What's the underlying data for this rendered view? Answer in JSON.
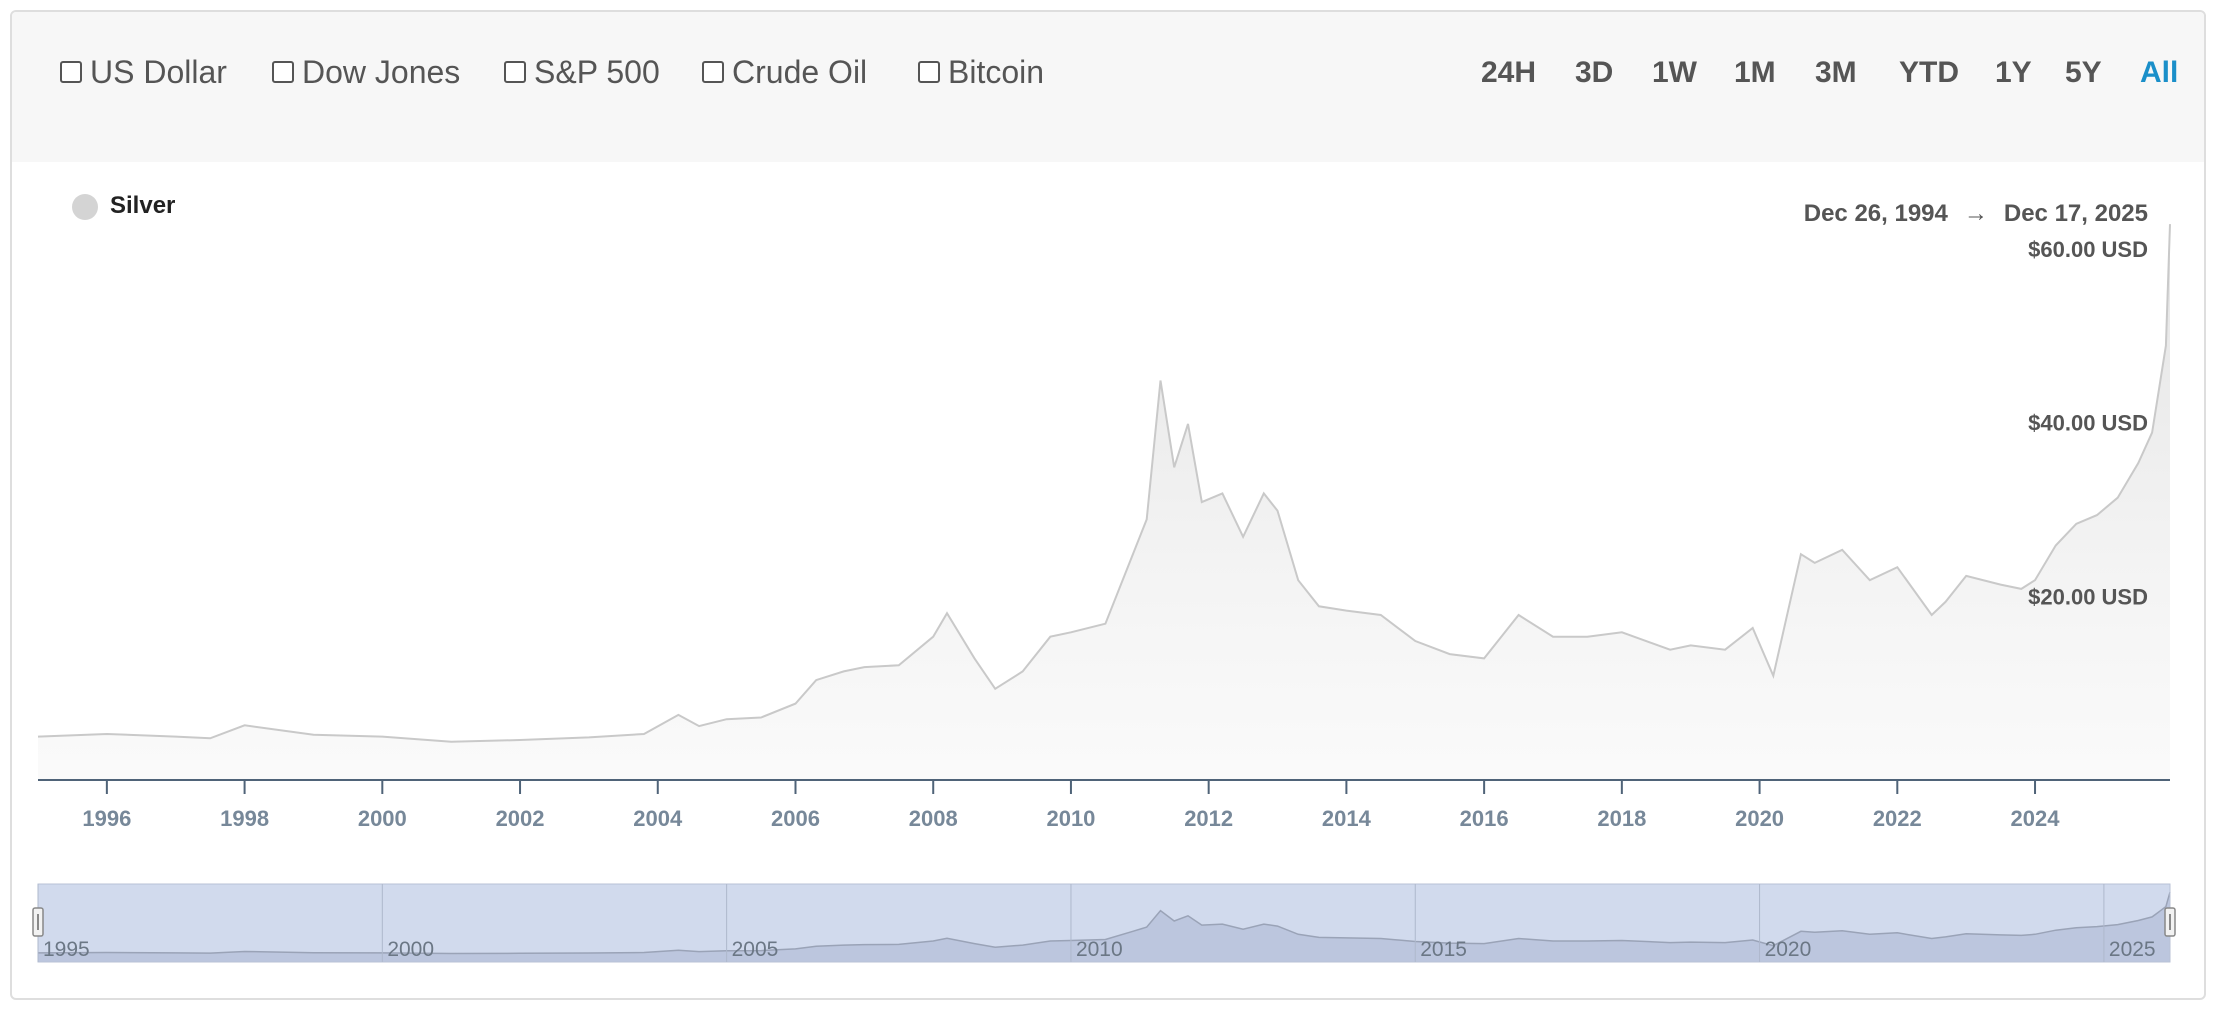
{
  "compare": [
    {
      "label": "US Dollar"
    },
    {
      "label": "Dow Jones"
    },
    {
      "label": "S&P 500"
    },
    {
      "label": "Crude Oil"
    },
    {
      "label": "Bitcoin"
    }
  ],
  "ranges": [
    "24H",
    "3D",
    "1W",
    "1M",
    "3M",
    "YTD",
    "1Y",
    "5Y",
    "All"
  ],
  "active_range": "All",
  "legend": {
    "name": "Silver"
  },
  "date_range": {
    "start": "Dec 26, 1994",
    "arrow": "→",
    "end": "Dec 17, 2025"
  },
  "colors": {
    "accent": "#1a8fc9",
    "series": "#c9c9c9",
    "navigator": "#ccd6eb",
    "axis": "#4f6378"
  },
  "chart_data": {
    "type": "area",
    "series": [
      {
        "name": "Silver",
        "x": [
          1995.0,
          1996.0,
          1997.0,
          1997.5,
          1998.0,
          1999.0,
          2000.0,
          2001.0,
          2002.0,
          2003.0,
          2003.8,
          2004.3,
          2004.6,
          2005.0,
          2005.5,
          2006.0,
          2006.3,
          2006.7,
          2007.0,
          2007.5,
          2008.0,
          2008.2,
          2008.6,
          2008.9,
          2009.3,
          2009.7,
          2010.0,
          2010.5,
          2010.9,
          2011.1,
          2011.3,
          2011.5,
          2011.7,
          2011.9,
          2012.2,
          2012.5,
          2012.8,
          2013.0,
          2013.3,
          2013.6,
          2014.0,
          2014.5,
          2015.0,
          2015.5,
          2016.0,
          2016.5,
          2017.0,
          2017.5,
          2018.0,
          2018.7,
          2019.0,
          2019.5,
          2019.9,
          2020.2,
          2020.6,
          2020.8,
          2021.2,
          2021.6,
          2022.0,
          2022.5,
          2022.7,
          2023.0,
          2023.5,
          2023.8,
          2024.0,
          2024.3,
          2024.6,
          2024.9,
          2025.2,
          2025.5,
          2025.7,
          2025.9,
          2025.96
        ],
        "values": [
          5.0,
          5.3,
          5.0,
          4.8,
          6.3,
          5.2,
          5.0,
          4.4,
          4.6,
          4.9,
          5.3,
          7.5,
          6.2,
          7.0,
          7.2,
          8.8,
          11.5,
          12.5,
          13.0,
          13.2,
          16.5,
          19.2,
          14.0,
          10.5,
          12.5,
          16.5,
          17.0,
          18.0,
          26.0,
          30.0,
          46.0,
          36.0,
          41.0,
          32.0,
          33.0,
          28.0,
          33.0,
          31.0,
          23.0,
          20.0,
          19.5,
          19.0,
          16.0,
          14.5,
          14.0,
          19.0,
          16.5,
          16.5,
          17.0,
          15.0,
          15.5,
          15.0,
          17.5,
          12.0,
          26.0,
          25.0,
          26.5,
          23.0,
          24.5,
          19.0,
          20.5,
          23.5,
          22.5,
          22.0,
          23.0,
          27.0,
          29.5,
          30.5,
          32.5,
          36.5,
          40.0,
          50.0,
          64.0
        ]
      }
    ],
    "xlim": [
      1995.0,
      2025.96
    ],
    "ylim": [
      0,
      70
    ],
    "x_ticks": [
      "1996",
      "1998",
      "2000",
      "2002",
      "2004",
      "2006",
      "2008",
      "2010",
      "2012",
      "2014",
      "2016",
      "2018",
      "2020",
      "2022",
      "2024"
    ],
    "y_ticks": [
      "$20.00 USD",
      "$40.00 USD",
      "$60.00 USD"
    ],
    "y_tick_values": [
      20,
      40,
      60
    ],
    "navigator_ticks": [
      "1995",
      "2000",
      "2005",
      "2010",
      "2015",
      "2020",
      "2025"
    ],
    "grid": false
  }
}
